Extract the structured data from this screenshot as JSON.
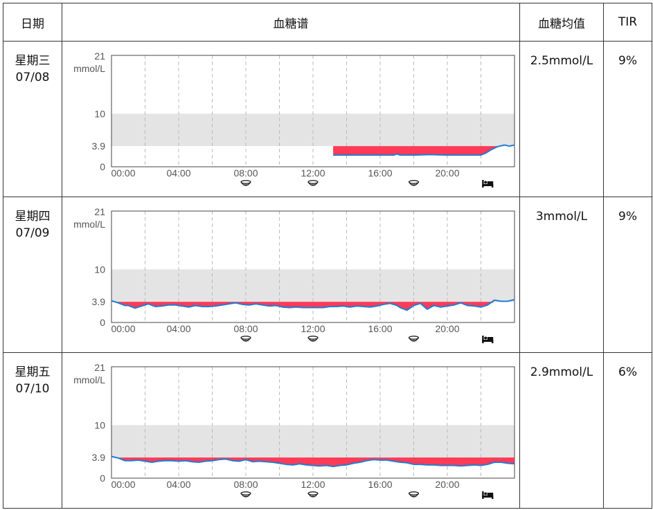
{
  "header": {
    "date_col": "日期",
    "chart_col": "血糖谱",
    "mean_col": "血糖均值",
    "tir_col": "TIR"
  },
  "chart_data": [
    {
      "type": "area",
      "weekday": "星期三",
      "date": "07/08",
      "mean": "2.5mmol/L",
      "tir": "9%",
      "y_top_label": "21",
      "y_unit": "mmol/L",
      "target_range": [
        3.9,
        10
      ],
      "ylim": [
        0,
        21
      ],
      "xlim": [
        0,
        24
      ],
      "x_ticks": [
        "00:00",
        "04:00",
        "08:00",
        "12:00",
        "16:00",
        "20:00"
      ],
      "y_ticks": [
        0,
        3.9,
        10
      ],
      "grid": true,
      "markers": [
        {
          "x": 8,
          "icon": "meal-bowl-icon"
        },
        {
          "x": 12,
          "icon": "meal-bowl-icon"
        },
        {
          "x": 18,
          "icon": "meal-bowl-icon"
        },
        {
          "x": 22.4,
          "icon": "bed-icon"
        }
      ],
      "x": [
        13.2,
        14,
        15,
        16,
        16.8,
        17,
        17.2,
        17.6,
        18,
        19,
        20,
        21,
        22,
        22.3,
        22.6,
        23,
        23.4,
        23.7,
        24
      ],
      "glucose": [
        2.2,
        2.2,
        2.2,
        2.2,
        2.2,
        2.4,
        2.2,
        2.2,
        2.2,
        2.3,
        2.2,
        2.2,
        2.2,
        2.6,
        3.2,
        3.8,
        4.1,
        3.9,
        4.1
      ]
    },
    {
      "type": "area",
      "weekday": "星期四",
      "date": "07/09",
      "mean": "3mmol/L",
      "tir": "9%",
      "y_top_label": "21",
      "y_unit": "mmol/L",
      "target_range": [
        3.9,
        10
      ],
      "ylim": [
        0,
        21
      ],
      "xlim": [
        0,
        24
      ],
      "x_ticks": [
        "00:00",
        "04:00",
        "08:00",
        "12:00",
        "16:00",
        "20:00"
      ],
      "y_ticks": [
        0,
        3.9,
        10
      ],
      "grid": true,
      "markers": [
        {
          "x": 8,
          "icon": "meal-bowl-icon"
        },
        {
          "x": 12,
          "icon": "meal-bowl-icon"
        },
        {
          "x": 18,
          "icon": "meal-bowl-icon"
        },
        {
          "x": 22.4,
          "icon": "bed-icon"
        }
      ],
      "x": [
        0,
        0.4,
        0.8,
        1,
        1.4,
        1.8,
        2.2,
        2.6,
        3,
        3.4,
        3.8,
        4.2,
        4.6,
        5,
        5.4,
        5.8,
        6.2,
        6.6,
        7,
        7.4,
        7.8,
        8.2,
        8.6,
        9,
        9.4,
        9.8,
        10.2,
        10.6,
        11,
        11.4,
        11.8,
        12.2,
        12.6,
        13,
        13.4,
        13.8,
        14.2,
        14.6,
        15,
        15.4,
        15.8,
        16.2,
        16.6,
        17,
        17.2,
        17.6,
        18,
        18.4,
        18.8,
        19.2,
        19.6,
        20,
        20.4,
        20.8,
        21.2,
        21.6,
        22,
        22.4,
        22.8,
        23.2,
        23.6,
        24
      ],
      "glucose": [
        4.1,
        3.7,
        3.2,
        3.2,
        2.7,
        3.1,
        3.5,
        3.0,
        3.1,
        3.3,
        3.3,
        3.1,
        2.9,
        3.2,
        3.0,
        3.0,
        3.1,
        3.3,
        3.5,
        3.7,
        3.4,
        3.3,
        3.5,
        3.3,
        3.1,
        3.2,
        2.9,
        2.8,
        2.9,
        2.8,
        2.8,
        2.8,
        2.8,
        3.0,
        3.0,
        3.1,
        2.9,
        3.1,
        3.0,
        2.9,
        3.1,
        3.4,
        3.6,
        3.2,
        2.8,
        2.3,
        3.2,
        3.6,
        2.5,
        3.2,
        2.9,
        3.1,
        3.3,
        3.7,
        3.2,
        3.1,
        2.9,
        3.3,
        4.2,
        4.0,
        4.0,
        4.3
      ]
    },
    {
      "type": "area",
      "weekday": "星期五",
      "date": "07/10",
      "mean": "2.9mmol/L",
      "tir": "6%",
      "y_top_label": "21",
      "y_unit": "mmol/L",
      "target_range": [
        3.9,
        10
      ],
      "ylim": [
        0,
        21
      ],
      "xlim": [
        0,
        24
      ],
      "x_ticks": [
        "00:00",
        "04:00",
        "08:00",
        "12:00",
        "16:00",
        "20:00"
      ],
      "y_ticks": [
        0,
        3.9,
        10
      ],
      "grid": true,
      "markers": [
        {
          "x": 8,
          "icon": "meal-bowl-icon"
        },
        {
          "x": 12,
          "icon": "meal-bowl-icon"
        },
        {
          "x": 18,
          "icon": "meal-bowl-icon"
        },
        {
          "x": 22.4,
          "icon": "bed-icon"
        }
      ],
      "x": [
        0,
        0.4,
        0.8,
        1.2,
        1.6,
        2,
        2.4,
        2.8,
        3.2,
        3.6,
        4,
        4.4,
        4.8,
        5.2,
        5.6,
        6,
        6.4,
        6.8,
        7.2,
        7.6,
        8,
        8.4,
        8.8,
        9.2,
        9.6,
        10,
        10.4,
        10.8,
        11.2,
        11.6,
        12,
        12.4,
        12.8,
        13.2,
        13.6,
        14,
        14.4,
        14.8,
        15.2,
        15.6,
        16,
        16.4,
        16.8,
        17.2,
        17.6,
        18,
        18.4,
        18.8,
        19.2,
        19.6,
        20,
        20.4,
        20.8,
        21.2,
        21.6,
        22,
        22.4,
        22.8,
        23.2,
        23.6,
        24
      ],
      "glucose": [
        4.1,
        3.8,
        3.3,
        3.3,
        3.4,
        3.2,
        3.0,
        3.2,
        3.3,
        3.3,
        3.2,
        3.3,
        3.1,
        3.0,
        3.2,
        3.3,
        3.5,
        3.6,
        3.3,
        3.2,
        3.5,
        3.1,
        3.2,
        3.1,
        3.0,
        2.8,
        2.6,
        2.5,
        2.7,
        2.5,
        2.4,
        2.3,
        2.4,
        2.2,
        2.4,
        2.5,
        2.8,
        3.0,
        3.3,
        3.5,
        3.4,
        3.4,
        3.2,
        3.0,
        2.9,
        2.6,
        2.6,
        2.5,
        2.5,
        2.4,
        2.4,
        2.4,
        2.3,
        2.4,
        2.5,
        2.4,
        2.6,
        3.0,
        3.0,
        2.8,
        2.7
      ]
    }
  ]
}
